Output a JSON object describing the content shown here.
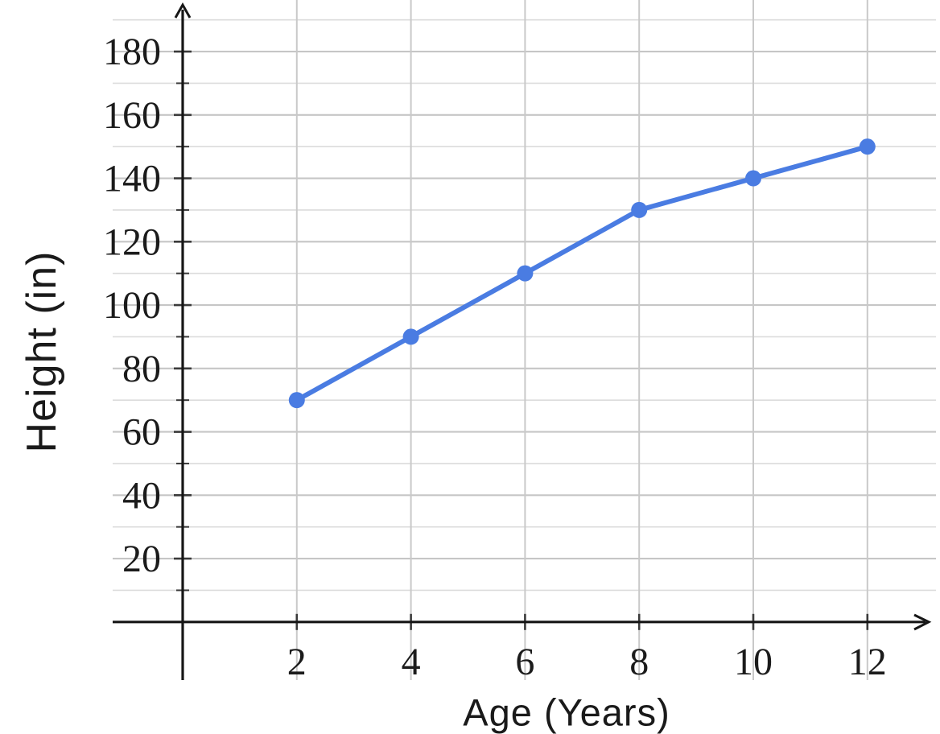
{
  "chart_data": {
    "type": "line",
    "title": "",
    "xlabel": "Age (Years)",
    "ylabel": "Height (in)",
    "x": [
      2,
      4,
      6,
      8,
      10,
      12
    ],
    "y": [
      70,
      90,
      110,
      130,
      140,
      150
    ],
    "series": [
      {
        "name": "Height",
        "x": [
          2,
          4,
          6,
          8,
          10,
          12
        ],
        "y": [
          70,
          90,
          110,
          130,
          140,
          150
        ]
      }
    ],
    "x_tick_labels": [
      "2",
      "4",
      "6",
      "8",
      "10",
      "12"
    ],
    "x_ticks": [
      2,
      4,
      6,
      8,
      10,
      12
    ],
    "y_tick_labels": [
      "20",
      "40",
      "60",
      "80",
      "100",
      "120",
      "140",
      "160",
      "180"
    ],
    "y_ticks": [
      20,
      40,
      60,
      80,
      100,
      120,
      140,
      160,
      180
    ],
    "y_minor_step": 10,
    "y_minor_max": 190,
    "xlim": [
      0,
      13.1
    ],
    "ylim": [
      0,
      196
    ],
    "grid": true,
    "legend": "none",
    "line_color": "#4a7ce2",
    "marker_color": "#4a7ce2",
    "axis_color": "#161616",
    "grid_major_color": "#c6c6c6",
    "grid_minor_color": "#dcdcdc",
    "grid_vertical_color": "#c9c9c9",
    "tick_text_color": "#1b1b1b"
  }
}
